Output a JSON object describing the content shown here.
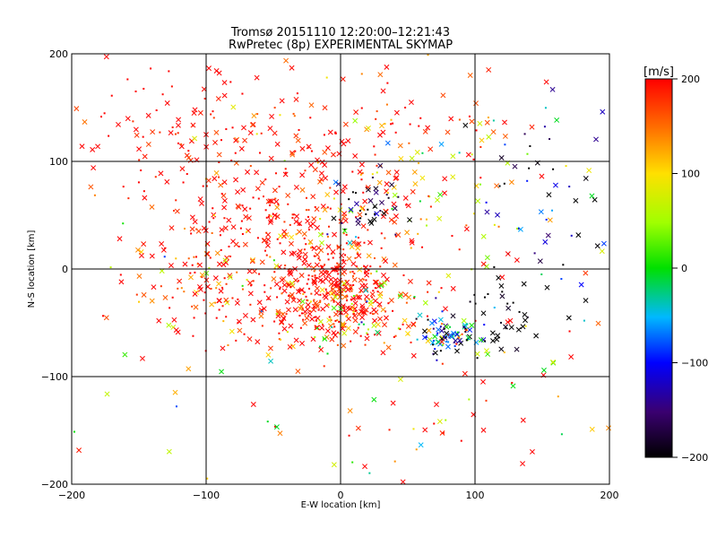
{
  "chart_data": {
    "type": "scatter",
    "title": "Tromsø 20151110 12:20:00–12:21:43",
    "subtitle": "RwPretec (8p) EXPERIMENTAL SKYMAP",
    "xlabel": "E-W location [km]",
    "ylabel": "N-S location [km]",
    "xlim": [
      -200,
      200
    ],
    "ylim": [
      -200,
      200
    ],
    "xticks": [
      "−200",
      "−100",
      "0",
      "100",
      "200"
    ],
    "yticks": [
      "−200",
      "−100",
      "0",
      "100",
      "200"
    ],
    "grid": true,
    "colorbar": {
      "label": "[m/s]",
      "range": [
        -200,
        200
      ],
      "ticks": [
        "200",
        "100",
        "0",
        "−100",
        "−200"
      ],
      "placement": "right"
    },
    "marker_types": [
      "cross",
      "dot"
    ],
    "clusters": [
      {
        "cx": -10,
        "cy": -20,
        "sx": 28,
        "sy": 25,
        "n": 380,
        "v": 200,
        "vs": 40
      },
      {
        "cx": 10,
        "cy": -40,
        "sx": 20,
        "sy": 18,
        "n": 60,
        "v": 60,
        "vs": 80
      },
      {
        "cx": 80,
        "cy": -60,
        "sx": 12,
        "sy": 10,
        "n": 90,
        "v": -40,
        "vs": 120
      },
      {
        "cx": 120,
        "cy": -40,
        "sx": 20,
        "sy": 20,
        "n": 40,
        "v": -200,
        "vs": 20
      },
      {
        "cx": -50,
        "cy": 50,
        "sx": 45,
        "sy": 40,
        "n": 220,
        "v": 200,
        "vs": 20
      },
      {
        "cx": -110,
        "cy": -10,
        "sx": 35,
        "sy": 30,
        "n": 90,
        "v": 180,
        "vs": 60
      },
      {
        "cx": -120,
        "cy": 140,
        "sx": 40,
        "sy": 35,
        "n": 90,
        "v": 200,
        "vs": 20
      },
      {
        "cx": 20,
        "cy": 130,
        "sx": 60,
        "sy": 40,
        "n": 80,
        "v": 190,
        "vs": 40
      },
      {
        "cx": 60,
        "cy": 80,
        "sx": 40,
        "sy": 40,
        "n": 80,
        "v": 120,
        "vs": 100
      },
      {
        "cx": 160,
        "cy": 80,
        "sx": 25,
        "sy": 40,
        "n": 50,
        "v": -150,
        "vs": 80
      },
      {
        "cx": 20,
        "cy": 60,
        "sx": 15,
        "sy": 15,
        "n": 40,
        "v": -180,
        "vs": 40
      },
      {
        "cx": 100,
        "cy": -120,
        "sx": 60,
        "sy": 50,
        "n": 40,
        "v": 100,
        "vs": 150
      },
      {
        "cx": 0,
        "cy": 0,
        "sx": 130,
        "sy": 130,
        "n": 220,
        "v": 150,
        "vs": 100
      }
    ]
  }
}
